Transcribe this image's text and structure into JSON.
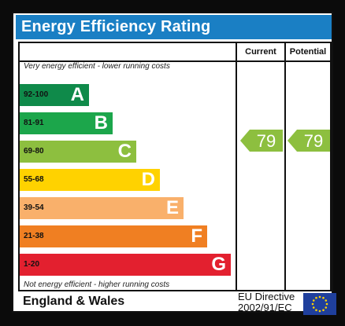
{
  "title": "Energy Efficiency Rating",
  "headers": {
    "current": "Current",
    "potential": "Potential"
  },
  "top_note": "Very energy efficient - lower running costs",
  "bottom_note": "Not energy efficient - higher running costs",
  "bands": [
    {
      "range": "92-100",
      "letter": "A",
      "color": "#0f8a4a"
    },
    {
      "range": "81-91",
      "letter": "B",
      "color": "#1ca64b"
    },
    {
      "range": "69-80",
      "letter": "C",
      "color": "#8dbf3f"
    },
    {
      "range": "55-68",
      "letter": "D",
      "color": "#ffd200"
    },
    {
      "range": "39-54",
      "letter": "E",
      "color": "#f9b06b"
    },
    {
      "range": "21-38",
      "letter": "F",
      "color": "#f07f22"
    },
    {
      "range": "1-20",
      "letter": "G",
      "color": "#e3202f"
    }
  ],
  "current_rating": "79",
  "potential_rating": "79",
  "rating_color": "#8dbf3f",
  "region": "England & Wales",
  "directive_line1": "EU Directive",
  "directive_line2": "2002/91/EC"
}
